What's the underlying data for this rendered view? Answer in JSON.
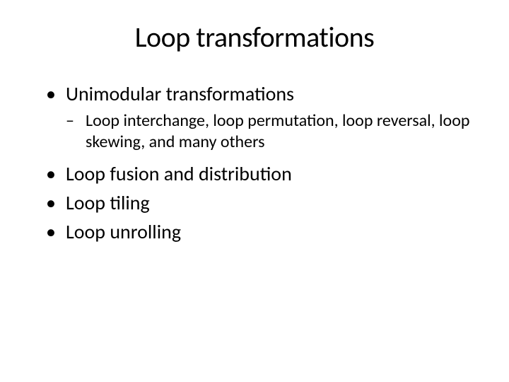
{
  "slide": {
    "title": "Loop transformations",
    "bullets": {
      "item1": "Unimodular transformations",
      "item1_sub": "Loop interchange, loop permutation, loop reversal, loop skewing, and many others",
      "item2": "Loop fusion and  distribution",
      "item3": "Loop tiling",
      "item4": "Loop unrolling"
    },
    "styling": {
      "background_color": "#ffffff",
      "text_color": "#000000",
      "title_fontsize": 40,
      "l1_fontsize": 28,
      "l2_fontsize": 24,
      "font_family": "Calibri"
    }
  }
}
